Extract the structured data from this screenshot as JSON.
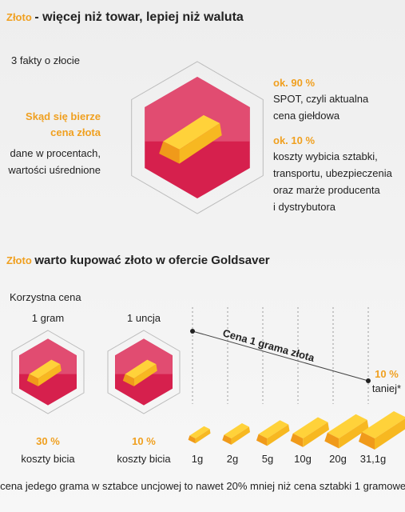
{
  "header": {
    "highlight": "Złoto",
    "title": "- więcej niż towar, lepiej niż waluta"
  },
  "facts": {
    "subtitle": "3 fakty o złocie",
    "heading": [
      "Skąd się bierze",
      "cena złota"
    ],
    "note": [
      "dane w procentach,",
      "wartości uśrednione"
    ],
    "items": [
      {
        "percent": "ok. 90 %",
        "lines": [
          "SPOT, czyli aktualna",
          "cena giełdowa"
        ]
      },
      {
        "percent": "ok. 10 %",
        "lines": [
          "koszty wybicia sztabki,",
          "transportu, ubezpieczenia",
          "oraz marże producenta",
          "i dystrybutora"
        ]
      }
    ]
  },
  "offer": {
    "highlight": "Złoto",
    "title": "warto kupować złoto w ofercie Goldsaver",
    "subtitle": "Korzystna cena",
    "products": [
      {
        "label": "1 gram",
        "percent": "30 %",
        "caption": "koszty bicia"
      },
      {
        "label": "1 uncja",
        "percent": "10 %",
        "caption": "koszty bicia"
      }
    ],
    "line_label": "Cena 1 grama złota",
    "saving": "10 %",
    "saving_caption": "taniej*",
    "sizes": [
      "1g",
      "2g",
      "5g",
      "10g",
      "20g",
      "31,1g"
    ],
    "footnote": "*cena jedego grama w sztabce uncjowej to nawet 20% mniej niż cena sztabki 1 gramowej"
  }
}
